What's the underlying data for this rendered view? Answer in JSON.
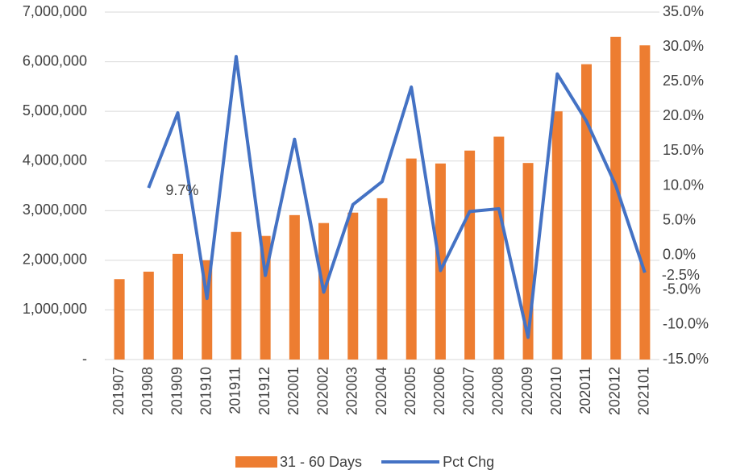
{
  "chart_data": {
    "type": "bar-line",
    "categories": [
      "201907",
      "201908",
      "201909",
      "201910",
      "201911",
      "201912",
      "202001",
      "202002",
      "202003",
      "202004",
      "202005",
      "202006",
      "202007",
      "202008",
      "202009",
      "202010",
      "202011",
      "202012",
      "202101"
    ],
    "series": [
      {
        "name": "31 - 60 Days",
        "type": "bar",
        "color": "#ed7d31",
        "values": [
          1620000,
          1770000,
          2130000,
          2000000,
          2570000,
          2490000,
          2910000,
          2750000,
          2960000,
          3250000,
          4050000,
          3950000,
          4210000,
          4490000,
          3960000,
          5000000,
          5950000,
          6500000,
          6330000
        ]
      },
      {
        "name": "Pct Chg",
        "type": "line",
        "color": "#4472c4",
        "axis": "y2",
        "values": [
          null,
          9.7,
          20.5,
          -6.2,
          28.6,
          -2.9,
          16.7,
          -5.3,
          7.3,
          10.6,
          24.2,
          -2.2,
          6.3,
          6.7,
          -11.8,
          26.1,
          19.3,
          10.1,
          -2.5
        ],
        "value_labels": [
          null,
          "9.7%",
          null,
          null,
          null,
          null,
          null,
          null,
          null,
          null,
          null,
          null,
          null,
          null,
          null,
          null,
          null,
          null,
          "-2.5%"
        ]
      }
    ],
    "ylim": [
      0,
      7000000
    ],
    "yticks": [
      {
        "value": 0,
        "label": "-"
      },
      {
        "value": 1000000,
        "label": "1,000,000"
      },
      {
        "value": 2000000,
        "label": "2,000,000"
      },
      {
        "value": 3000000,
        "label": "3,000,000"
      },
      {
        "value": 4000000,
        "label": "4,000,000"
      },
      {
        "value": 5000000,
        "label": "5,000,000"
      },
      {
        "value": 6000000,
        "label": "6,000,000"
      },
      {
        "value": 7000000,
        "label": "7,000,000"
      }
    ],
    "y2lim": [
      -15,
      35
    ],
    "y2ticks": [
      {
        "value": -15,
        "label": "-15.0%"
      },
      {
        "value": -10,
        "label": "-10.0%"
      },
      {
        "value": -5,
        "label": "-5.0%"
      },
      {
        "value": 0,
        "label": "0.0%"
      },
      {
        "value": 5,
        "label": "5.0%"
      },
      {
        "value": 10,
        "label": "10.0%"
      },
      {
        "value": 15,
        "label": "15.0%"
      },
      {
        "value": 20,
        "label": "20.0%"
      },
      {
        "value": 25,
        "label": "25.0%"
      },
      {
        "value": 30,
        "label": "30.0%"
      },
      {
        "value": 35,
        "label": "35.0%"
      }
    ],
    "grid": true,
    "legend": "bottom"
  }
}
